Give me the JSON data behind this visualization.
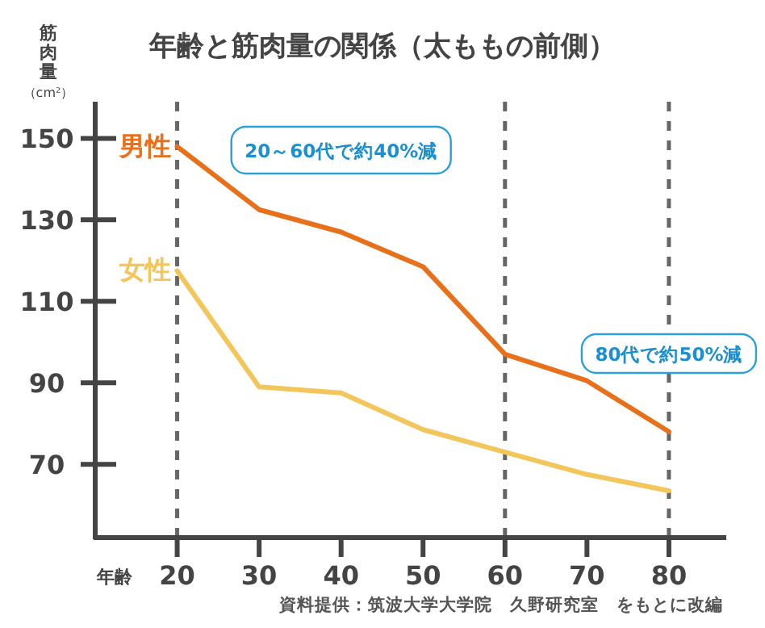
{
  "chart_data": {
    "type": "line",
    "title": "年齢と筋肉量の関係（太ももの前側）",
    "xlabel": "年齢",
    "ylabel": "筋肉量（cm²）",
    "x": [
      20,
      30,
      40,
      50,
      60,
      70,
      80
    ],
    "xlim": [
      10,
      87
    ],
    "xticks": [
      20,
      30,
      40,
      50,
      60,
      70,
      80
    ],
    "ylim": [
      52,
      159
    ],
    "yticks": [
      70,
      90,
      110,
      130,
      150
    ],
    "series": [
      {
        "name": "男性",
        "color": "#e8701a",
        "values": [
          148,
          132.5,
          127,
          118.5,
          97,
          90.5,
          78
        ]
      },
      {
        "name": "女性",
        "color": "#f2c65a",
        "values": [
          117.5,
          89,
          87.5,
          78.5,
          73,
          67.5,
          63.5
        ]
      }
    ],
    "ref_lines": [
      {
        "axis": "x",
        "value": 20,
        "color": "#666666",
        "line_style": "dashed"
      },
      {
        "axis": "x",
        "value": 60,
        "color": "#666666",
        "line_style": "dashed"
      },
      {
        "axis": "x",
        "value": 80,
        "color": "#666666",
        "line_style": "dashed"
      }
    ],
    "annotations": [
      "20～60代で約40%減",
      "80代で約50%減",
      "資料提供：筑波大学大学院　久野研究室　をもとに改編"
    ],
    "grid": false,
    "legend": false,
    "marker": "none",
    "line_style": "solid"
  }
}
